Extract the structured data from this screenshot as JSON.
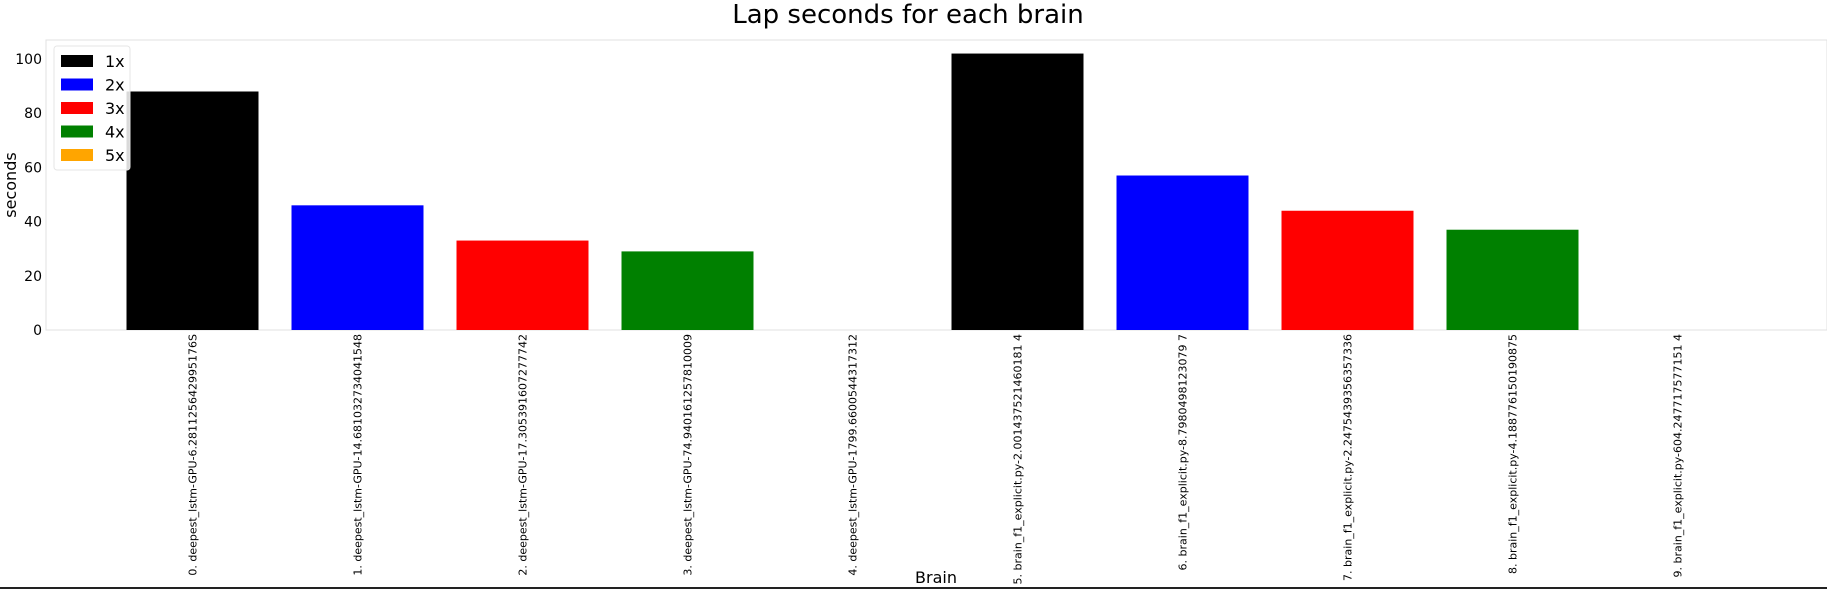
{
  "chart_data": {
    "type": "bar",
    "title": "Lap seconds for each brain",
    "xlabel": "Brain",
    "ylabel": "seconds",
    "ylim": [
      0,
      107
    ],
    "yticks": [
      0,
      20,
      40,
      60,
      80,
      100
    ],
    "grid": false,
    "legend_position": "top-left",
    "categories": [
      "0. deepest_lstm-GPU-6.281125642995176S",
      "1. deepest_lstm-GPU-14.681032734041548",
      "2. deepest_lstm-GPU-17.305391607277742",
      "3. deepest_lstm-GPU-74.940161257810009",
      "4. deepest_lstm-GPU-1799.6600544317312",
      "5. brain_f1_explicit.py-2.001437521460181 4",
      "6. brain_f1_explicit.py-8.7980498123079 7",
      "7. brain_f1_explicit.py-2.2475439356357336",
      "8. brain_f1_explicit.py-4.188776150190875",
      "9. brain_f1_explicit.py-604.247717577151 4"
    ],
    "values": [
      88,
      46,
      33,
      29,
      0,
      102,
      57,
      44,
      37,
      0
    ],
    "bar_colors": [
      "#000000",
      "#0000ff",
      "#ff0000",
      "#008000",
      "#ffa500",
      "#000000",
      "#0000ff",
      "#ff0000",
      "#008000",
      "#ffa500"
    ],
    "legend": [
      {
        "label": "1x",
        "color": "#000000"
      },
      {
        "label": "2x",
        "color": "#0000ff"
      },
      {
        "label": "3x",
        "color": "#ff0000"
      },
      {
        "label": "4x",
        "color": "#008000"
      },
      {
        "label": "5x",
        "color": "#ffa500"
      }
    ]
  }
}
